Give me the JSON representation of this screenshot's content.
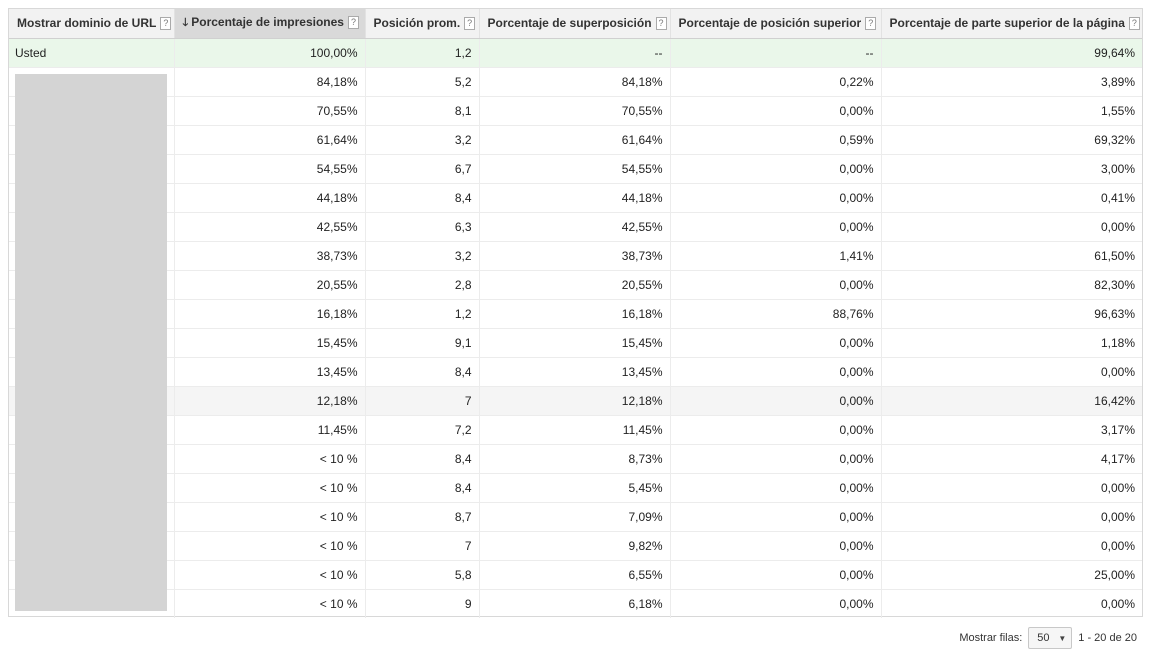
{
  "columns": [
    {
      "label": "Mostrar dominio de URL",
      "help": "?"
    },
    {
      "label": "Porcentaje de impresiones",
      "help": "?",
      "sort_icon": "arrow-down-icon"
    },
    {
      "label": "Posición prom.",
      "help": "?"
    },
    {
      "label": "Porcentaje de superposición",
      "help": "?"
    },
    {
      "label": "Porcentaje de posición superior",
      "help": "?"
    },
    {
      "label": "Porcentaje de parte superior de la página",
      "help": "?"
    }
  ],
  "rows": [
    {
      "domain": "Usted",
      "impr": "100,00%",
      "pos": "1,2",
      "overlap": "--",
      "top_pos": "--",
      "top_page": "99,64%"
    },
    {
      "domain": "",
      "impr": "84,18%",
      "pos": "5,2",
      "overlap": "84,18%",
      "top_pos": "0,22%",
      "top_page": "3,89%"
    },
    {
      "domain": "",
      "impr": "70,55%",
      "pos": "8,1",
      "overlap": "70,55%",
      "top_pos": "0,00%",
      "top_page": "1,55%"
    },
    {
      "domain": "",
      "impr": "61,64%",
      "pos": "3,2",
      "overlap": "61,64%",
      "top_pos": "0,59%",
      "top_page": "69,32%"
    },
    {
      "domain": "",
      "impr": "54,55%",
      "pos": "6,7",
      "overlap": "54,55%",
      "top_pos": "0,00%",
      "top_page": "3,00%"
    },
    {
      "domain": "",
      "impr": "44,18%",
      "pos": "8,4",
      "overlap": "44,18%",
      "top_pos": "0,00%",
      "top_page": "0,41%"
    },
    {
      "domain": "",
      "impr": "42,55%",
      "pos": "6,3",
      "overlap": "42,55%",
      "top_pos": "0,00%",
      "top_page": "0,00%"
    },
    {
      "domain": "",
      "impr": "38,73%",
      "pos": "3,2",
      "overlap": "38,73%",
      "top_pos": "1,41%",
      "top_page": "61,50%"
    },
    {
      "domain": "",
      "impr": "20,55%",
      "pos": "2,8",
      "overlap": "20,55%",
      "top_pos": "0,00%",
      "top_page": "82,30%"
    },
    {
      "domain": "",
      "impr": "16,18%",
      "pos": "1,2",
      "overlap": "16,18%",
      "top_pos": "88,76%",
      "top_page": "96,63%"
    },
    {
      "domain": "",
      "impr": "15,45%",
      "pos": "9,1",
      "overlap": "15,45%",
      "top_pos": "0,00%",
      "top_page": "1,18%"
    },
    {
      "domain": "",
      "impr": "13,45%",
      "pos": "8,4",
      "overlap": "13,45%",
      "top_pos": "0,00%",
      "top_page": "0,00%"
    },
    {
      "domain": "",
      "impr": "12,18%",
      "pos": "7",
      "overlap": "12,18%",
      "top_pos": "0,00%",
      "top_page": "16,42%"
    },
    {
      "domain": "",
      "impr": "11,45%",
      "pos": "7,2",
      "overlap": "11,45%",
      "top_pos": "0,00%",
      "top_page": "3,17%"
    },
    {
      "domain": "",
      "impr": "< 10 %",
      "pos": "8,4",
      "overlap": "8,73%",
      "top_pos": "0,00%",
      "top_page": "4,17%"
    },
    {
      "domain": "",
      "impr": "< 10 %",
      "pos": "8,4",
      "overlap": "5,45%",
      "top_pos": "0,00%",
      "top_page": "0,00%"
    },
    {
      "domain": "",
      "impr": "< 10 %",
      "pos": "8,7",
      "overlap": "7,09%",
      "top_pos": "0,00%",
      "top_page": "0,00%"
    },
    {
      "domain": "",
      "impr": "< 10 %",
      "pos": "7",
      "overlap": "9,82%",
      "top_pos": "0,00%",
      "top_page": "0,00%"
    },
    {
      "domain": "",
      "impr": "< 10 %",
      "pos": "5,8",
      "overlap": "6,55%",
      "top_pos": "0,00%",
      "top_page": "25,00%"
    },
    {
      "domain": "",
      "impr": "< 10 %",
      "pos": "9",
      "overlap": "6,18%",
      "top_pos": "0,00%",
      "top_page": "0,00%"
    }
  ],
  "footer": {
    "rows_label": "Mostrar filas:",
    "rows_value": "50",
    "range": "1 - 20 de 20"
  },
  "colors": {
    "you_row": "#eaf7ea",
    "header_bg": "#f2f2f2",
    "sorted_header_bg": "#d9d9d9",
    "redaction": "#d4d4d4"
  }
}
